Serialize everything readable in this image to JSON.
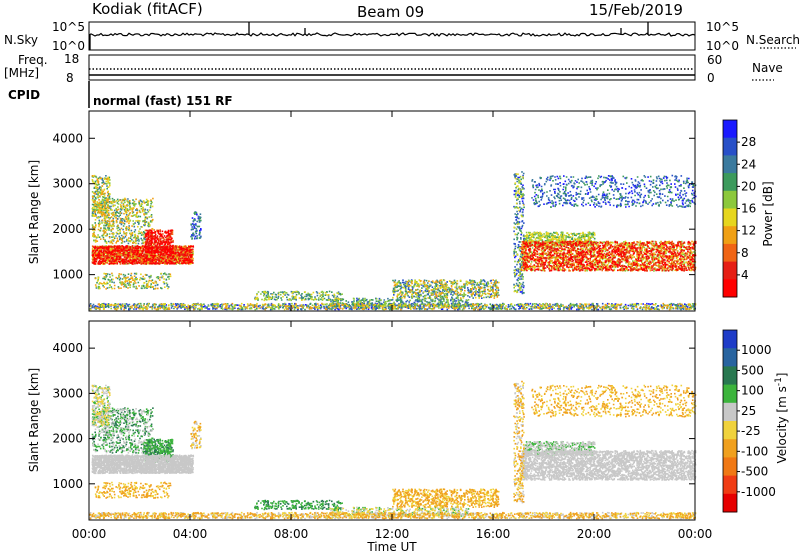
{
  "header": {
    "station": "Kodiak (fitACF)",
    "beam": "Beam 09",
    "date": "15/Feb/2019"
  },
  "top_panels": {
    "nsky_label": "N.Sky",
    "nsky_ticks": [
      "10^5",
      "10^0"
    ],
    "nsearch_label": "N.Search",
    "nsearch_ticks": [
      "10^5",
      "10^0"
    ],
    "freq_label_line1": "Freq.",
    "freq_label_line2": "[MHz]",
    "freq_ticks": [
      "18",
      "8"
    ],
    "nave_label": "Nave",
    "nave_ticks": [
      "60",
      "0"
    ],
    "cpid_label": "CPID",
    "cpid_text": "normal (fast) 151 RF"
  },
  "chart_data": [
    {
      "type": "heatmap",
      "name": "Power",
      "ylabel": "Slant Range [km]",
      "yticks": [
        "1000",
        "2000",
        "3000",
        "4000"
      ],
      "ylim": [
        200,
        4600
      ],
      "colorbar_label": "Power [dB]",
      "colorbar_ticks": [
        "4",
        "8",
        "12",
        "16",
        "20",
        "24",
        "28"
      ],
      "colorbar_colors": [
        "#1a1aff",
        "#2850c8",
        "#3b7a9e",
        "#3c9a5c",
        "#8cc83c",
        "#e6d61e",
        "#f0a014",
        "#f06414",
        "#e61e14",
        "#ff0000"
      ]
    },
    {
      "type": "heatmap",
      "name": "Velocity",
      "ylabel": "Slant Range [km]",
      "yticks": [
        "1000",
        "2000",
        "3000",
        "4000"
      ],
      "ylim": [
        200,
        4600
      ],
      "colorbar_label": "Velocity [m s-1]",
      "colorbar_ticks": [
        "1000",
        "500",
        "100",
        "25",
        "-25",
        "-100",
        "-500",
        "-1000"
      ],
      "colorbar_colors": [
        "#1e3cc8",
        "#2864a0",
        "#287850",
        "#3cb43c",
        "#c8c8c8",
        "#f0d23c",
        "#f0a01e",
        "#f07814",
        "#f03c14",
        "#e60000"
      ],
      "xlabel": "Time UT",
      "xticks": [
        "00:00",
        "04:00",
        "08:00",
        "12:00",
        "16:00",
        "20:00",
        "00:00"
      ]
    }
  ]
}
